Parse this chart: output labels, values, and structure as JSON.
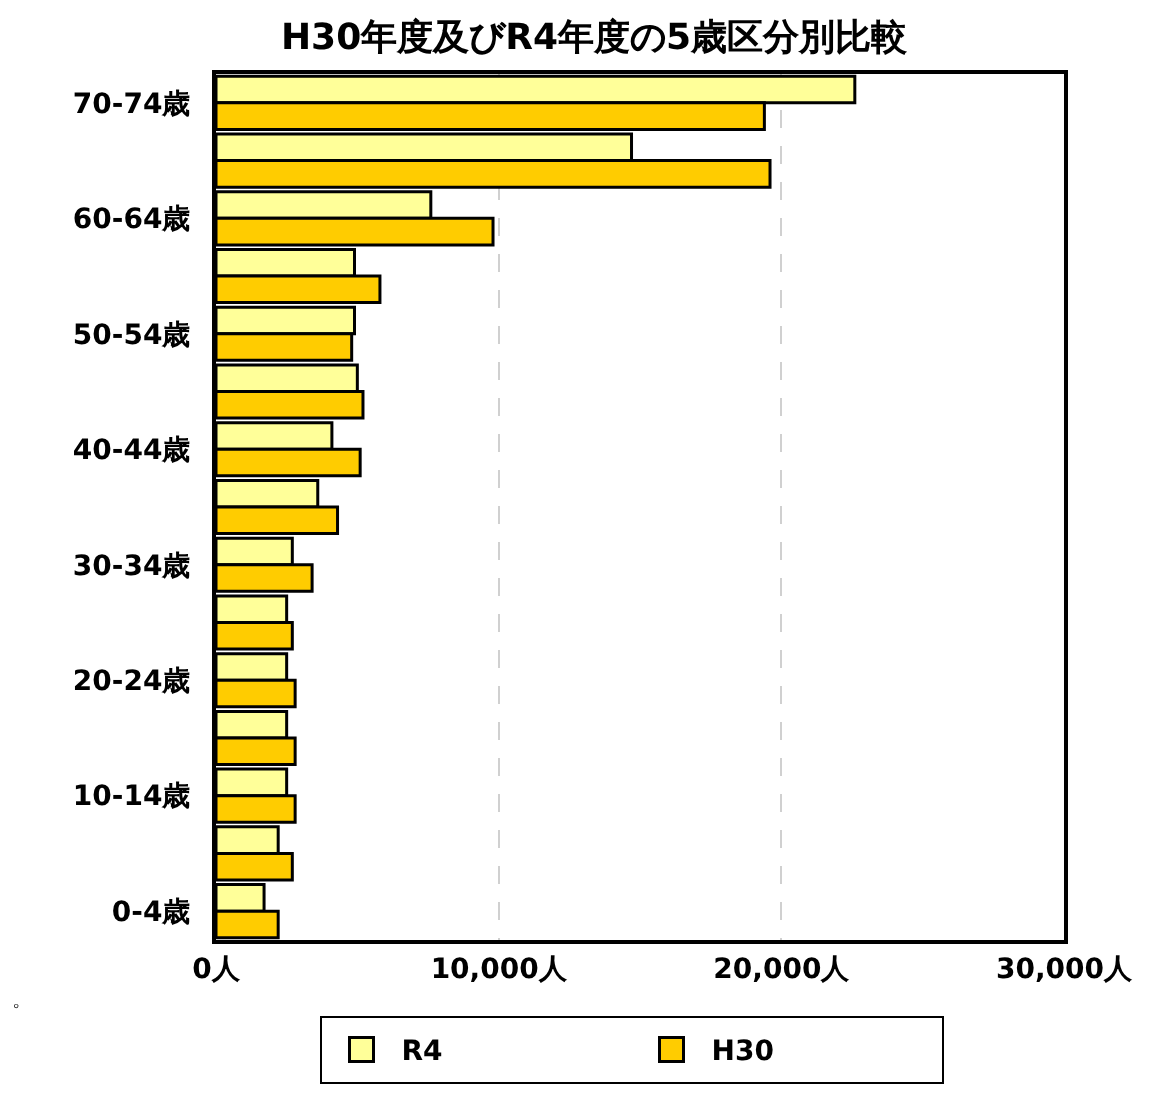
{
  "chart_data": {
    "type": "bar",
    "orientation": "horizontal",
    "title": "H30年度及びR4年度の5歳区分別比較",
    "categories": [
      "70-74歳",
      null,
      "60-64歳",
      null,
      "50-54歳",
      null,
      "40-44歳",
      null,
      "30-34歳",
      null,
      "20-24歳",
      null,
      "10-14歳",
      null,
      "0-4歳"
    ],
    "series": [
      {
        "name": "R4",
        "color": "#ffff99",
        "values": [
          22600,
          14700,
          7600,
          4900,
          4900,
          5000,
          4100,
          3600,
          2700,
          2500,
          2500,
          2500,
          2500,
          2200,
          1700
        ]
      },
      {
        "name": "H30",
        "color": "#ffcc00",
        "values": [
          19400,
          19600,
          9800,
          5800,
          4800,
          5200,
          5100,
          4300,
          3400,
          2700,
          2800,
          2800,
          2800,
          2700,
          2200
        ]
      }
    ],
    "xlim": [
      0,
      30000
    ],
    "xticks": [
      {
        "value": 0,
        "label": "0人"
      },
      {
        "value": 10000,
        "label": "10,000人"
      },
      {
        "value": 20000,
        "label": "20,000人"
      },
      {
        "value": 30000,
        "label": "30,000人"
      }
    ],
    "grid": "x",
    "legend": "bottom",
    "annotations": [
      "。"
    ]
  }
}
